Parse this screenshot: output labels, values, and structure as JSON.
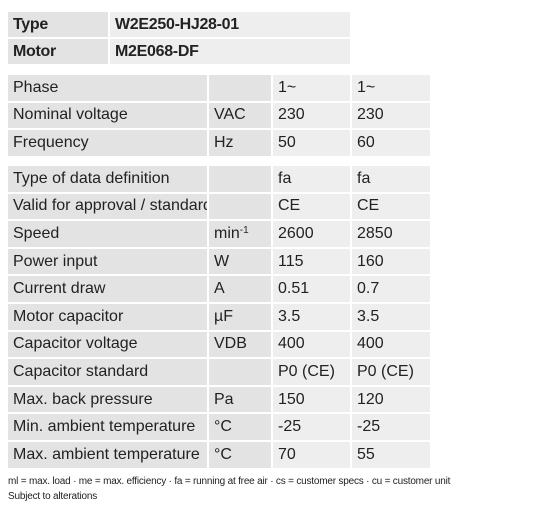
{
  "header": {
    "rows": [
      [
        "Type",
        "W2E250-HJ28-01"
      ],
      [
        "Motor",
        "M2E068-DF"
      ]
    ]
  },
  "table1": {
    "rows": [
      [
        "Phase",
        null,
        "1~",
        "1~"
      ],
      [
        "Nominal voltage",
        "VAC",
        "230",
        "230"
      ],
      [
        "Frequency",
        "Hz",
        "50",
        "60"
      ]
    ]
  },
  "table2": {
    "rows": [
      [
        "Type of data definition",
        null,
        "fa",
        "fa"
      ],
      [
        "Valid for approval / standard",
        null,
        "CE",
        "CE"
      ],
      [
        "Speed",
        [
          "min",
          "-1"
        ],
        "2600",
        "2850"
      ],
      [
        "Power input",
        "W",
        "115",
        "160"
      ],
      [
        "Current draw",
        "A",
        "0.51",
        "0.7"
      ],
      [
        "Motor capacitor",
        "µF",
        "3.5",
        "3.5"
      ],
      [
        "Capacitor voltage",
        "VDB",
        "400",
        "400"
      ],
      [
        "Capacitor standard",
        null,
        "P0 (CE)",
        "P0 (CE)"
      ],
      [
        "Max. back pressure",
        "Pa",
        "150",
        "120"
      ],
      [
        "Min. ambient temperature",
        "°C",
        "-25",
        "-25"
      ],
      [
        "Max. ambient temperature",
        "°C",
        "70",
        "55"
      ]
    ]
  },
  "footer": {
    "legend": "ml = max. load · me = max. efficiency · fa = running at free air · cs = customer specs · cu = customer unit",
    "note": "Subject to alterations"
  }
}
